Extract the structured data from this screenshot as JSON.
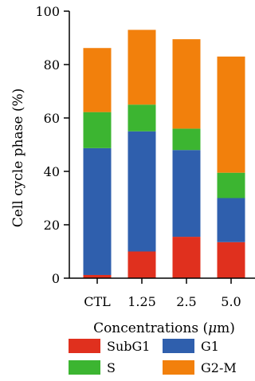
{
  "chart_data": {
    "type": "bar",
    "stacked": true,
    "categories": [
      "CTL",
      "1.25",
      "2.5",
      "5.0"
    ],
    "xlabel_prefix": "Concentrations (",
    "xlabel_unit_mu": "μ",
    "xlabel_unit_rest": "m)",
    "ylabel": "Cell cycle phase (%)",
    "ylim": [
      0,
      100
    ],
    "yticks": [
      "0",
      "20",
      "40",
      "60",
      "80",
      "100"
    ],
    "grid": false,
    "legend_placement": "bottom",
    "series": [
      {
        "name": "SubG1",
        "color": "#e0301e",
        "values": [
          1.2,
          10,
          15.5,
          13.5
        ]
      },
      {
        "name": "G1",
        "color": "#2f5fad",
        "values": [
          47.5,
          45,
          32.5,
          16.5
        ]
      },
      {
        "name": "S",
        "color": "#3cb531",
        "values": [
          13.5,
          10,
          8,
          9.5
        ]
      },
      {
        "name": "G2-M",
        "color": "#f2800c",
        "values": [
          24,
          28,
          33.5,
          43.5
        ]
      }
    ]
  }
}
